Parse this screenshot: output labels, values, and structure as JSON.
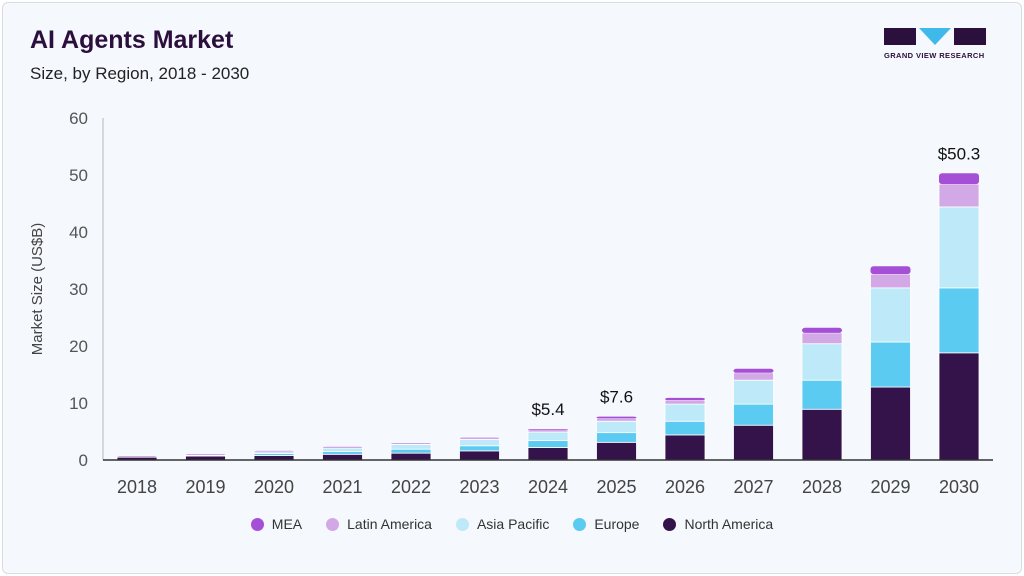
{
  "header": {
    "title": "AI Agents Market",
    "subtitle": "Size, by Region, 2018 - 2030",
    "logo_text": "GRAND VIEW RESEARCH"
  },
  "chart_data": {
    "type": "bar",
    "stacked": true,
    "title": "AI Agents Market",
    "subtitle": "Size, by Region, 2018 - 2030",
    "xlabel": "",
    "ylabel": "Market Size (US$B)",
    "ylim": [
      0,
      60
    ],
    "yticks": [
      0,
      10,
      20,
      30,
      40,
      50,
      60
    ],
    "grid": false,
    "legend_position": "bottom",
    "categories": [
      "2018",
      "2019",
      "2020",
      "2021",
      "2022",
      "2023",
      "2024",
      "2025",
      "2026",
      "2027",
      "2028",
      "2029",
      "2030"
    ],
    "series": [
      {
        "name": "North America",
        "color": "#33134a",
        "values": [
          0.5,
          0.7,
          0.8,
          1.0,
          1.2,
          1.6,
          2.2,
          3.1,
          4.4,
          6.1,
          8.9,
          12.8,
          18.8
        ]
      },
      {
        "name": "Europe",
        "color": "#5bcbf2",
        "values": [
          0.1,
          0.1,
          0.35,
          0.5,
          0.7,
          0.9,
          1.2,
          1.7,
          2.4,
          3.7,
          5.1,
          7.9,
          11.4
        ]
      },
      {
        "name": "Asia Pacific",
        "color": "#bde9f8",
        "values": [
          0.05,
          0.1,
          0.35,
          0.6,
          0.8,
          1.1,
          1.5,
          2.0,
          3.0,
          4.2,
          6.4,
          9.5,
          14.2
        ]
      },
      {
        "name": "Latin America",
        "color": "#d3a8e6",
        "values": [
          0.03,
          0.05,
          0.05,
          0.1,
          0.15,
          0.2,
          0.3,
          0.5,
          0.7,
          1.3,
          1.9,
          2.4,
          4.0
        ]
      },
      {
        "name": "MEA",
        "color": "#a54fd6",
        "values": [
          0.02,
          0.05,
          0.05,
          0.1,
          0.05,
          0.1,
          0.2,
          0.3,
          0.4,
          0.7,
          0.9,
          1.4,
          1.9
        ]
      }
    ],
    "annotations": [
      {
        "category": "2024",
        "text": "$5.4"
      },
      {
        "category": "2025",
        "text": "$7.6"
      },
      {
        "category": "2030",
        "text": "$50.3"
      }
    ],
    "legend_order": [
      "MEA",
      "Latin America",
      "Asia Pacific",
      "Europe",
      "North America"
    ]
  }
}
